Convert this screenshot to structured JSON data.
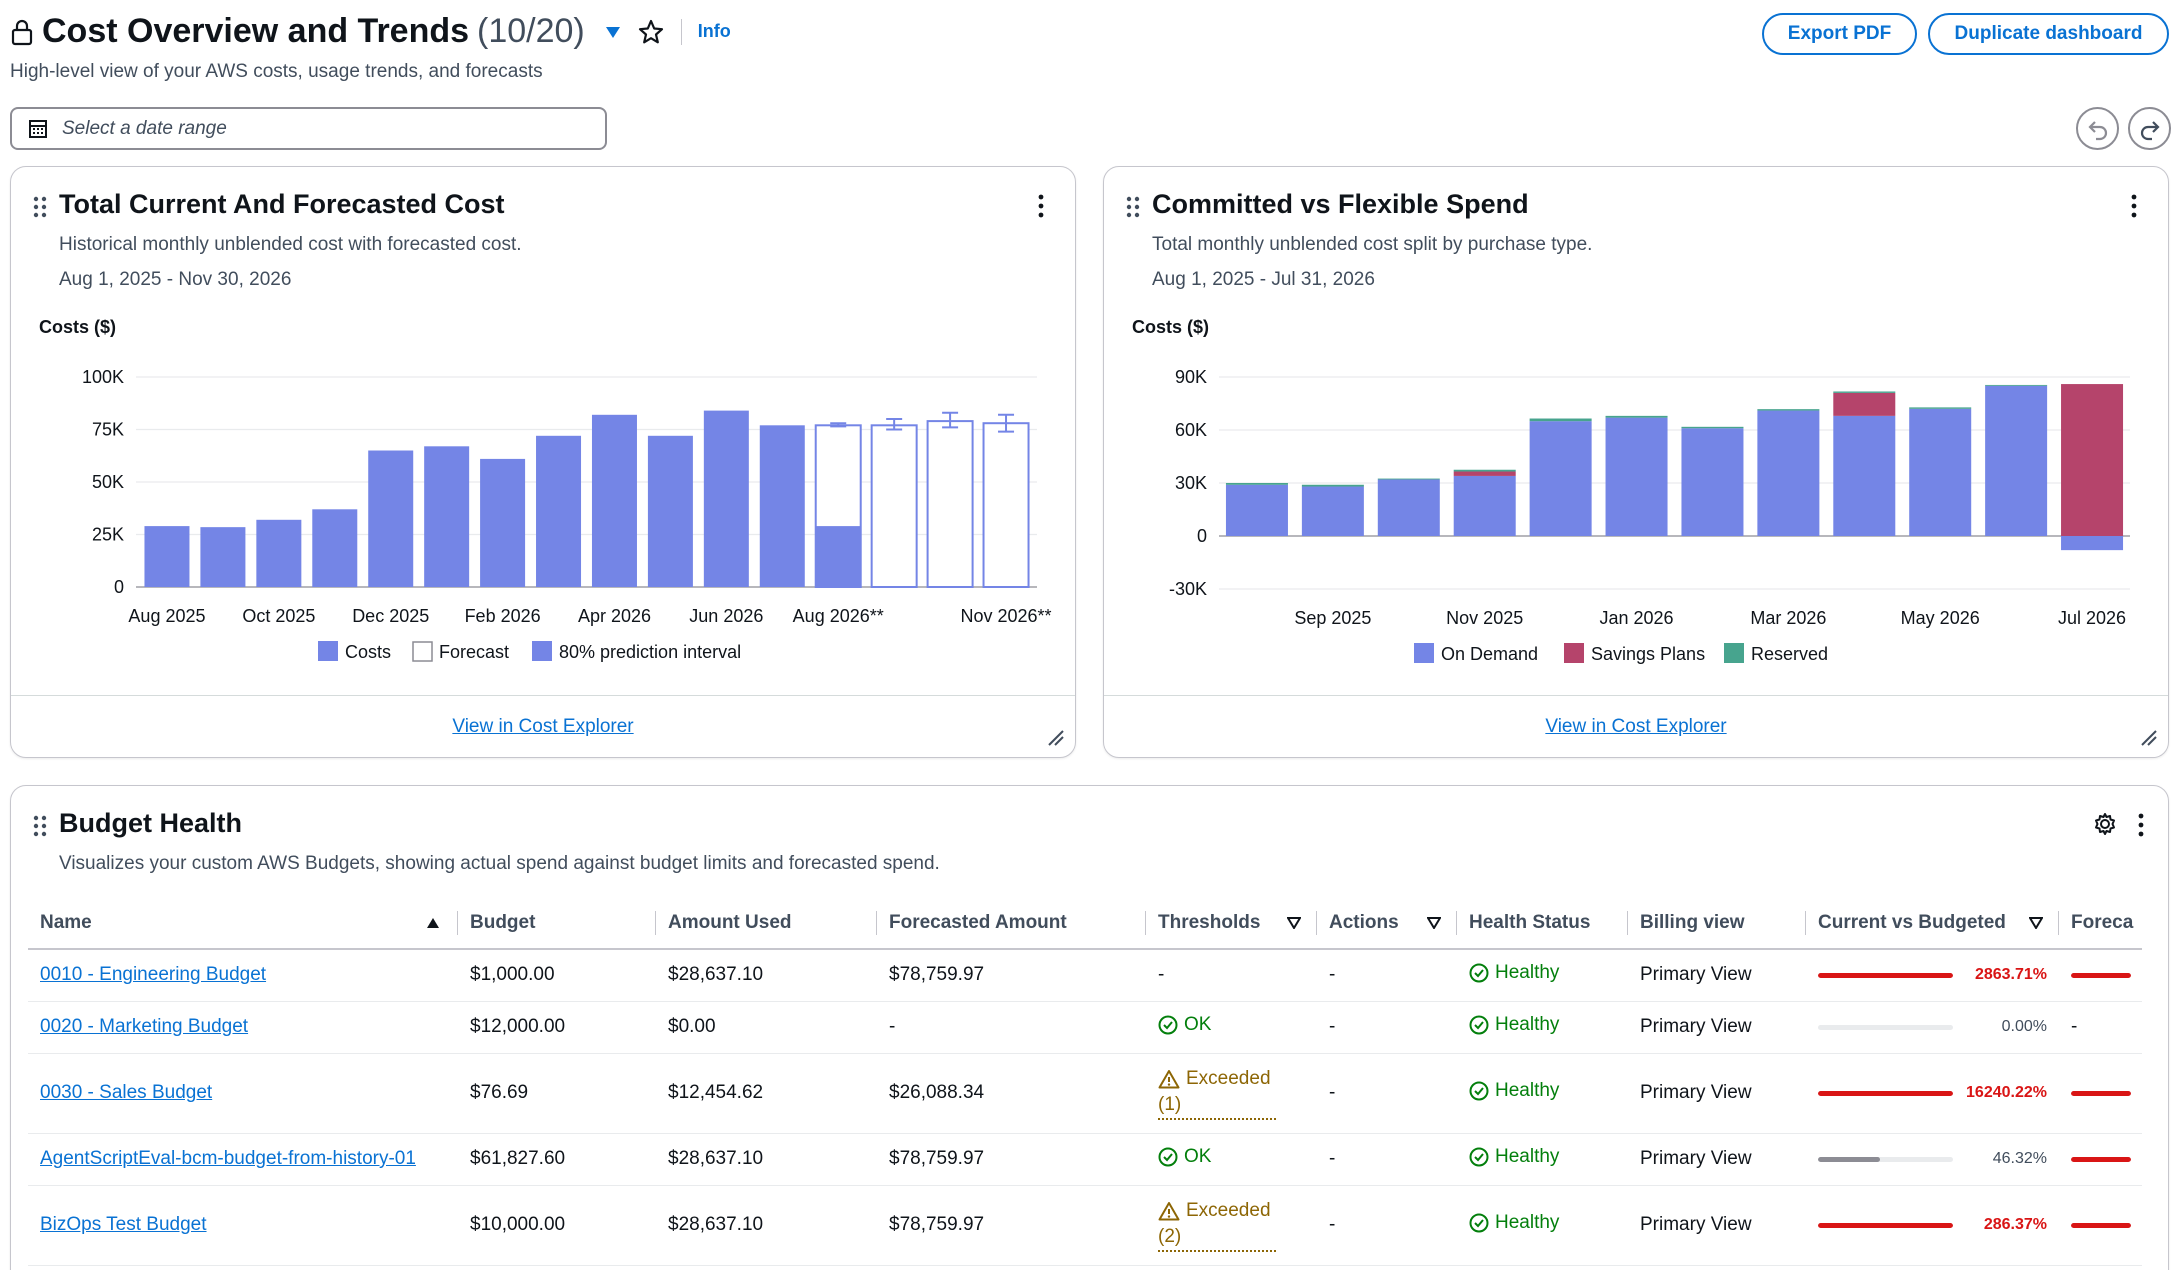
{
  "header": {
    "title": "Cost Overview and Trends",
    "count": "(10/20)",
    "info": "Info",
    "subtitle": "High-level view of your AWS costs, usage trends, and forecasts",
    "export_pdf": "Export PDF",
    "duplicate": "Duplicate dashboard",
    "date_placeholder": "Select a date range"
  },
  "widget_total": {
    "title": "Total Current And Forecasted Cost",
    "desc": "Historical monthly unblended cost with forecasted cost.",
    "range": "Aug 1, 2025 - Nov 30, 2026",
    "footer_link": "View in Cost Explorer"
  },
  "widget_committed": {
    "title": "Committed vs Flexible Spend",
    "desc": "Total monthly unblended cost split by purchase type.",
    "range": "Aug 1, 2025 - Jul 31, 2026",
    "footer_link": "View in Cost Explorer"
  },
  "chart_data": [
    {
      "type": "bar",
      "ylabel": "Costs ($)",
      "ylim": [
        0,
        100000
      ],
      "yticks": [
        "0",
        "25K",
        "50K",
        "75K",
        "100K"
      ],
      "x_tick_labels": [
        "Aug 2025",
        "Oct 2025",
        "Dec 2025",
        "Feb 2026",
        "Apr 2026",
        "Jun 2026",
        "Aug 2026**",
        "Nov 2026**"
      ],
      "categories": [
        "Aug 2025",
        "Sep 2025",
        "Oct 2025",
        "Nov 2025",
        "Dec 2025",
        "Jan 2026",
        "Feb 2026",
        "Mar 2026",
        "Apr 2026",
        "May 2026",
        "Jun 2026",
        "Jul 2026",
        "Aug 2026",
        "Sep 2026",
        "Oct 2026",
        "Nov 2026"
      ],
      "series": [
        {
          "name": "Costs",
          "values": [
            29000,
            28500,
            32000,
            37000,
            65000,
            67000,
            61000,
            72000,
            82000,
            72000,
            84000,
            77000,
            29000,
            null,
            null,
            null
          ]
        },
        {
          "name": "Forecast",
          "values": [
            null,
            null,
            null,
            null,
            null,
            null,
            null,
            null,
            null,
            null,
            null,
            null,
            77000,
            77000,
            79000,
            78000
          ]
        },
        {
          "name": "80% prediction interval",
          "low": [
            null,
            null,
            null,
            null,
            null,
            null,
            null,
            null,
            null,
            null,
            null,
            null,
            76500,
            75000,
            76000,
            74000
          ],
          "high": [
            null,
            null,
            null,
            null,
            null,
            null,
            null,
            null,
            null,
            null,
            null,
            null,
            78000,
            80000,
            83000,
            82000
          ]
        }
      ],
      "legend": "bottom",
      "grid": true,
      "colors": {
        "costs": "#7485e6",
        "forecast_border": "#7485e6"
      }
    },
    {
      "type": "bar",
      "ylabel": "Costs ($)",
      "ylim": [
        -30000,
        90000
      ],
      "yticks": [
        "-30K",
        "0",
        "30K",
        "60K",
        "90K"
      ],
      "x_tick_labels": [
        "Sep 2025",
        "Nov 2025",
        "Jan 2026",
        "Mar 2026",
        "May 2026",
        "Jul 2026"
      ],
      "categories": [
        "Aug 2025",
        "Sep 2025",
        "Oct 2025",
        "Nov 2025",
        "Dec 2025",
        "Jan 2026",
        "Feb 2026",
        "Mar 2026",
        "Apr 2026",
        "May 2026",
        "Jun 2026",
        "Jul 2026"
      ],
      "series": [
        {
          "name": "On Demand",
          "values": [
            29000,
            28000,
            32000,
            34000,
            65000,
            67000,
            61000,
            71000,
            68000,
            72000,
            85000,
            -8000
          ]
        },
        {
          "name": "Savings Plans",
          "values": [
            0,
            0,
            0,
            2500,
            0,
            0,
            0,
            0,
            13000,
            0,
            0,
            86000
          ]
        },
        {
          "name": "Reserved",
          "values": [
            1000,
            1000,
            500,
            1000,
            1500,
            1000,
            800,
            800,
            800,
            800,
            500,
            0
          ]
        }
      ],
      "legend": "bottom",
      "grid": true,
      "colors": {
        "on_demand": "#7485e6",
        "savings_plans": "#b5446b",
        "reserved": "#47a48e"
      }
    }
  ],
  "budget": {
    "title": "Budget Health",
    "desc": "Visualizes your custom AWS Budgets, showing actual spend against budget limits and forecasted spend.",
    "columns": [
      "Name",
      "Budget",
      "Amount Used",
      "Forecasted Amount",
      "Thresholds",
      "Actions",
      "Health Status",
      "Billing view",
      "Current vs Budgeted",
      "Foreca"
    ],
    "rows": [
      {
        "name": "0010 - Engineering Budget",
        "budget": "$1,000.00",
        "used": "$28,637.10",
        "forecast": "$78,759.97",
        "threshold_type": "none",
        "threshold_text": "-",
        "threshold_count": "",
        "actions": "-",
        "health": "Healthy",
        "view": "Primary View",
        "pct": "2863.71%",
        "pct_value": 28.6371,
        "bar_color": "#d91515",
        "fc_visible": true
      },
      {
        "name": "0020 - Marketing Budget",
        "budget": "$12,000.00",
        "used": "$0.00",
        "forecast": "-",
        "threshold_type": "ok",
        "threshold_text": "OK",
        "threshold_count": "",
        "actions": "-",
        "health": "Healthy",
        "view": "Primary View",
        "pct": "0.00%",
        "pct_value": 0.0,
        "bar_color": "#8c8c94",
        "fc_visible": false
      },
      {
        "name": "0030 - Sales Budget",
        "budget": "$76.69",
        "used": "$12,454.62",
        "forecast": "$26,088.34",
        "threshold_type": "exceeded",
        "threshold_text": "Exceeded",
        "threshold_count": "(1)",
        "actions": "-",
        "health": "Healthy",
        "view": "Primary View",
        "pct": "16240.22%",
        "pct_value": 162.4022,
        "bar_color": "#d91515",
        "fc_visible": true
      },
      {
        "name": "AgentScriptEval-bcm-budget-from-history-01",
        "budget": "$61,827.60",
        "used": "$28,637.10",
        "forecast": "$78,759.97",
        "threshold_type": "ok",
        "threshold_text": "OK",
        "threshold_count": "",
        "actions": "-",
        "health": "Healthy",
        "view": "Primary View",
        "pct": "46.32%",
        "pct_value": 0.4632,
        "bar_color": "#8c8c94",
        "fc_visible": true
      },
      {
        "name": "BizOps Test Budget",
        "budget": "$10,000.00",
        "used": "$28,637.10",
        "forecast": "$78,759.97",
        "threshold_type": "exceeded",
        "threshold_text": "Exceeded",
        "threshold_count": "(2)",
        "actions": "-",
        "health": "Healthy",
        "view": "Primary View",
        "pct": "286.37%",
        "pct_value": 2.8637,
        "bar_color": "#d91515",
        "fc_visible": true
      }
    ],
    "fc_dash": "-"
  }
}
